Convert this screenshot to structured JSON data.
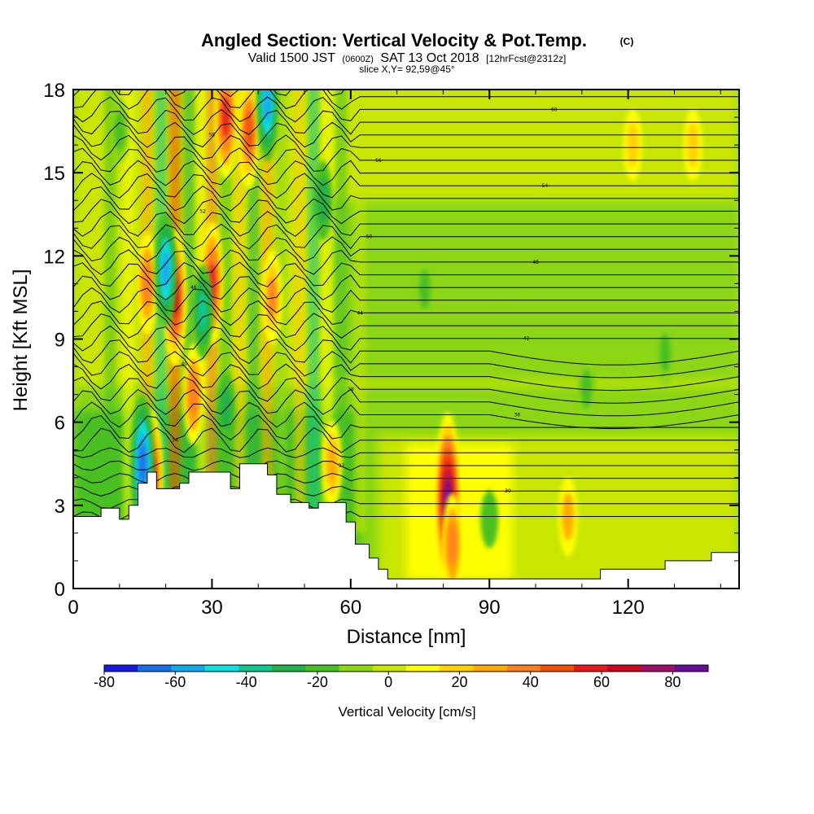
{
  "chart_data": {
    "type": "heatmap",
    "title": "Angled Section: Vertical Velocity & Pot.Temp.",
    "title_unit": "(C)",
    "subtitle_parts": [
      "Valid 1500 JST",
      "(0600Z)",
      "SAT 13 Oct 2018",
      "[12hrFcst@2312z]"
    ],
    "subtitle2": "slice X,Y= 92,59@45°",
    "xlabel": "Distance [nm]",
    "ylabel": "Height [Kft MSL]",
    "xlim": [
      0,
      144
    ],
    "ylim": [
      0,
      18
    ],
    "xticks": [
      0,
      30,
      60,
      90,
      120
    ],
    "yticks": [
      0,
      3,
      6,
      9,
      12,
      15,
      18
    ],
    "grid": false,
    "colorbar": {
      "label": "Vertical Velocity [cm/s]",
      "ticks": [
        -80,
        -60,
        -40,
        -20,
        0,
        20,
        40,
        60,
        80
      ],
      "range": [
        -80,
        90
      ],
      "bin": 10,
      "colors": [
        "#1a1ae6",
        "#1a6ee6",
        "#12a8ee",
        "#10e0e0",
        "#10c890",
        "#22b04a",
        "#4ac020",
        "#8cd612",
        "#c8e600",
        "#ffff00",
        "#ffd000",
        "#ffaa00",
        "#ff8020",
        "#f05000",
        "#e61a1a",
        "#d00020",
        "#a0106a",
        "#6a0a9a"
      ]
    },
    "isentropes_C": [
      28,
      29,
      30,
      31,
      32,
      33,
      34,
      35,
      36,
      37,
      38,
      39,
      40,
      41,
      42,
      43,
      44,
      45,
      46,
      47,
      48,
      49,
      50,
      51,
      52,
      53,
      54,
      55,
      56,
      57,
      58,
      59,
      60,
      61,
      62
    ],
    "terrain_kft": [
      [
        0,
        2.6
      ],
      [
        6,
        2.6
      ],
      [
        6,
        2.9
      ],
      [
        10,
        2.9
      ],
      [
        10,
        2.5
      ],
      [
        12,
        2.5
      ],
      [
        12,
        3.0
      ],
      [
        14,
        3.0
      ],
      [
        14,
        3.8
      ],
      [
        16,
        3.8
      ],
      [
        16,
        4.2
      ],
      [
        18,
        4.2
      ],
      [
        18,
        3.6
      ],
      [
        23,
        3.6
      ],
      [
        23,
        3.8
      ],
      [
        25,
        3.8
      ],
      [
        25,
        4.2
      ],
      [
        34,
        4.2
      ],
      [
        34,
        3.6
      ],
      [
        36,
        3.6
      ],
      [
        36,
        4.5
      ],
      [
        42,
        4.5
      ],
      [
        42,
        4.1
      ],
      [
        44,
        4.1
      ],
      [
        44,
        3.4
      ],
      [
        47,
        3.4
      ],
      [
        47,
        3.1
      ],
      [
        51,
        3.1
      ],
      [
        51,
        2.9
      ],
      [
        53,
        2.9
      ],
      [
        53,
        3.1
      ],
      [
        59,
        3.1
      ],
      [
        59,
        2.4
      ],
      [
        61,
        2.4
      ],
      [
        61,
        1.6
      ],
      [
        64,
        1.6
      ],
      [
        64,
        1.1
      ],
      [
        66,
        1.1
      ],
      [
        66,
        0.7
      ],
      [
        68,
        0.7
      ],
      [
        68,
        0.35
      ],
      [
        114,
        0.35
      ],
      [
        114,
        0.7
      ],
      [
        128,
        0.7
      ],
      [
        128,
        1.0
      ],
      [
        138,
        1.0
      ],
      [
        138,
        1.3
      ],
      [
        144,
        1.3
      ]
    ],
    "cells_cm_s": [
      {
        "x": 81,
        "z": 3.2,
        "w": 95
      },
      {
        "x": 82,
        "z": 1.6,
        "w": 45
      },
      {
        "x": 22,
        "z": 10.5,
        "w": 70
      },
      {
        "x": 17,
        "z": 4.1,
        "w": 65
      },
      {
        "x": 30,
        "z": 11.0,
        "w": 60
      },
      {
        "x": 33,
        "z": 17.0,
        "w": 60
      },
      {
        "x": 38,
        "z": 16.5,
        "w": 55
      },
      {
        "x": 16,
        "z": 11.0,
        "w": 45
      },
      {
        "x": 26,
        "z": 7.0,
        "w": 45
      },
      {
        "x": 43,
        "z": 10.5,
        "w": 40
      },
      {
        "x": 56,
        "z": 4.5,
        "w": 35
      },
      {
        "x": 107,
        "z": 2.6,
        "w": 30
      },
      {
        "x": 121,
        "z": 16.0,
        "w": 25
      },
      {
        "x": 134,
        "z": 16.0,
        "w": 25
      },
      {
        "x": 20,
        "z": 11.5,
        "w": -55
      },
      {
        "x": 28,
        "z": 10.0,
        "w": -40
      },
      {
        "x": 42,
        "z": 17.5,
        "w": -55
      },
      {
        "x": 15,
        "z": 4.5,
        "w": -70
      },
      {
        "x": 54,
        "z": 14.0,
        "w": -30
      },
      {
        "x": 33,
        "z": 6.5,
        "w": -25
      },
      {
        "x": 10,
        "z": 16.5,
        "w": -20
      },
      {
        "x": 90,
        "z": 2.5,
        "w": -15
      },
      {
        "x": 111,
        "z": 7.2,
        "w": -20
      },
      {
        "x": 128,
        "z": 8.5,
        "w": -20
      },
      {
        "x": 95,
        "z": 10.5,
        "w": -10
      },
      {
        "x": 76,
        "z": 10.8,
        "w": -20
      }
    ]
  }
}
